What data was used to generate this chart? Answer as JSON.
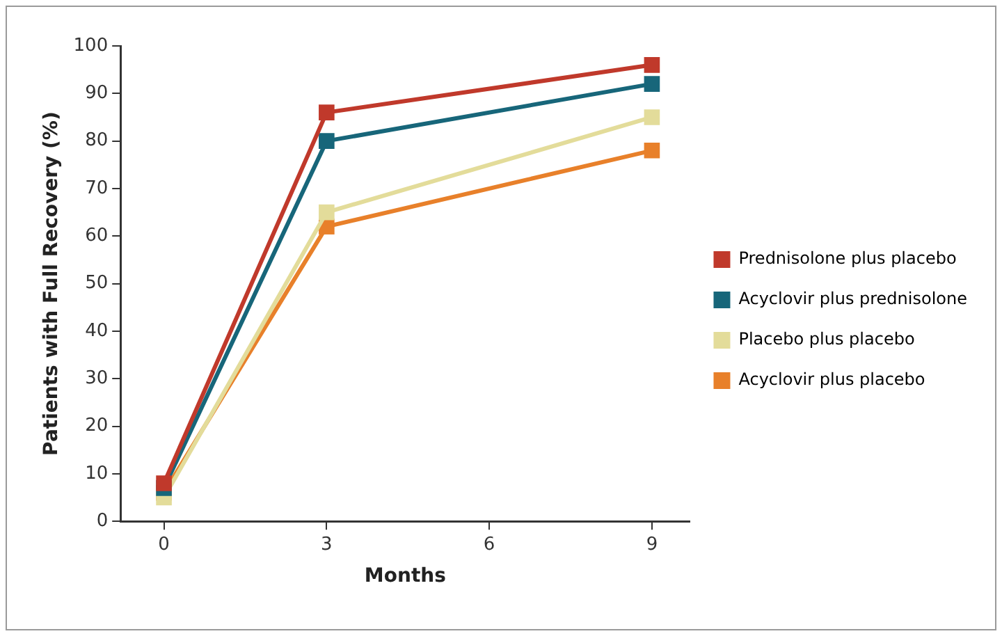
{
  "chart_data": {
    "type": "line",
    "xlabel": "Months",
    "ylabel": "Patients with Full Recovery (%)",
    "x": [
      0,
      3,
      9
    ],
    "series": [
      {
        "name": "Prednisolone plus placebo",
        "color": "#c0392b",
        "values": [
          8,
          86,
          96
        ]
      },
      {
        "name": "Acyclovir plus prednisolone",
        "color": "#17667a",
        "values": [
          7,
          80,
          92
        ]
      },
      {
        "name": "Placebo plus placebo",
        "color": "#e3dc9a",
        "values": [
          5,
          65,
          85
        ]
      },
      {
        "name": "Acyclovir plus placebo",
        "color": "#e8802a",
        "values": [
          6,
          62,
          78
        ]
      }
    ],
    "xlim": [
      -0.8,
      9.7
    ],
    "xticks": [
      0,
      3,
      6,
      9
    ],
    "ylim": [
      0,
      100
    ],
    "yticks": [
      0,
      10,
      20,
      30,
      40,
      50,
      60,
      70,
      80,
      90,
      100
    ],
    "grid": false,
    "legend": "right",
    "marker": "square",
    "line_style": "solid"
  }
}
